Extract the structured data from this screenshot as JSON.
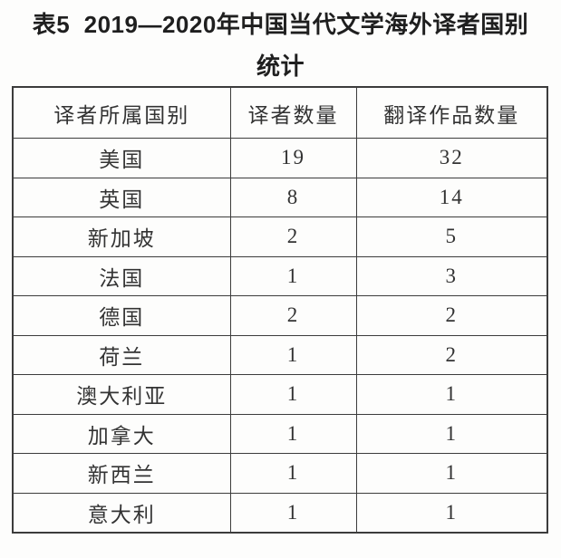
{
  "caption": {
    "line1": "表5  2019—2020年中国当代文学海外译者国别",
    "line2": "统计"
  },
  "table": {
    "columns": [
      "译者所属国别",
      "译者数量",
      "翻译作品数量"
    ],
    "rows": [
      {
        "country": "美国",
        "translators": "19",
        "works": "32"
      },
      {
        "country": "英国",
        "translators": "8",
        "works": "14"
      },
      {
        "country": "新加坡",
        "translators": "2",
        "works": "5"
      },
      {
        "country": "法国",
        "translators": "1",
        "works": "3"
      },
      {
        "country": "德国",
        "translators": "2",
        "works": "2"
      },
      {
        "country": "荷兰",
        "translators": "1",
        "works": "2"
      },
      {
        "country": "澳大利亚",
        "translators": "1",
        "works": "1"
      },
      {
        "country": "加拿大",
        "translators": "1",
        "works": "1"
      },
      {
        "country": "新西兰",
        "translators": "1",
        "works": "1"
      },
      {
        "country": "意大利",
        "translators": "1",
        "works": "1"
      }
    ]
  },
  "chart_data": {
    "type": "table",
    "title": "表5 2019—2020年中国当代文学海外译者国别统计",
    "columns": [
      "译者所属国别",
      "译者数量",
      "翻译作品数量"
    ],
    "categories": [
      "美国",
      "英国",
      "新加坡",
      "法国",
      "德国",
      "荷兰",
      "澳大利亚",
      "加拿大",
      "新西兰",
      "意大利"
    ],
    "series": [
      {
        "name": "译者数量",
        "values": [
          19,
          8,
          2,
          1,
          2,
          1,
          1,
          1,
          1,
          1
        ]
      },
      {
        "name": "翻译作品数量",
        "values": [
          32,
          14,
          5,
          3,
          2,
          2,
          1,
          1,
          1,
          1
        ]
      }
    ]
  }
}
